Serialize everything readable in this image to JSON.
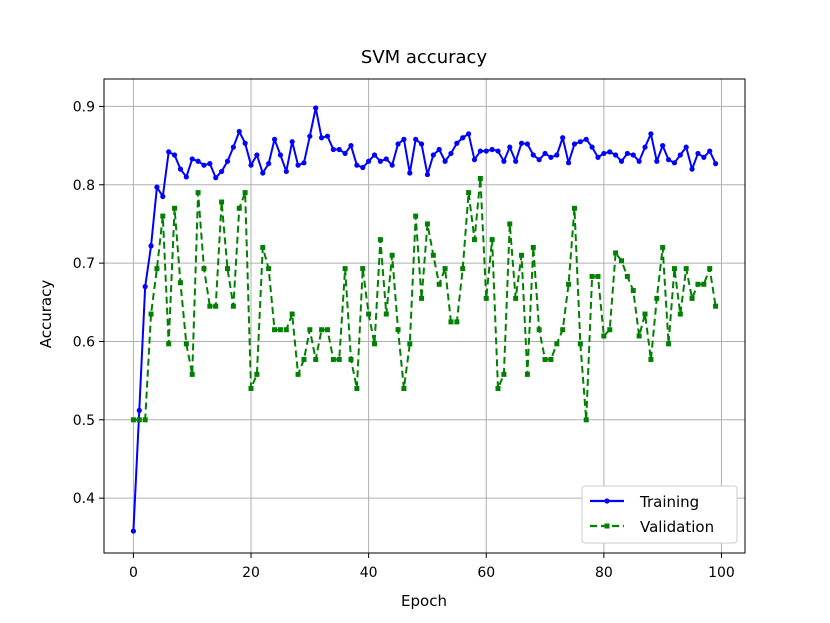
{
  "chart_data": {
    "type": "line",
    "title": "SVM accuracy",
    "xlabel": "Epoch",
    "ylabel": "Accuracy",
    "xlim": [
      -5,
      104
    ],
    "ylim": [
      0.33,
      0.935
    ],
    "xticks": [
      0,
      20,
      40,
      60,
      80,
      100
    ],
    "yticks": [
      0.4,
      0.5,
      0.6,
      0.7,
      0.8,
      0.9
    ],
    "grid": true,
    "legend_position": "lower-right",
    "series": [
      {
        "name": "Training",
        "color": "#0000ff",
        "linestyle": "solid",
        "marker": "dot",
        "x": [
          0,
          1,
          2,
          3,
          4,
          5,
          6,
          7,
          8,
          9,
          10,
          11,
          12,
          13,
          14,
          15,
          16,
          17,
          18,
          19,
          20,
          21,
          22,
          23,
          24,
          25,
          26,
          27,
          28,
          29,
          30,
          31,
          32,
          33,
          34,
          35,
          36,
          37,
          38,
          39,
          40,
          41,
          42,
          43,
          44,
          45,
          46,
          47,
          48,
          49,
          50,
          51,
          52,
          53,
          54,
          55,
          56,
          57,
          58,
          59,
          60,
          61,
          62,
          63,
          64,
          65,
          66,
          67,
          68,
          69,
          70,
          71,
          72,
          73,
          74,
          75,
          76,
          77,
          78,
          79,
          80,
          81,
          82,
          83,
          84,
          85,
          86,
          87,
          88,
          89,
          90,
          91,
          92,
          93,
          94,
          95,
          96,
          97,
          98,
          99
        ],
        "values": [
          0.358,
          0.512,
          0.67,
          0.722,
          0.797,
          0.785,
          0.842,
          0.838,
          0.82,
          0.81,
          0.833,
          0.83,
          0.825,
          0.827,
          0.809,
          0.817,
          0.83,
          0.848,
          0.868,
          0.853,
          0.825,
          0.838,
          0.815,
          0.827,
          0.858,
          0.838,
          0.817,
          0.855,
          0.825,
          0.828,
          0.862,
          0.898,
          0.86,
          0.862,
          0.845,
          0.845,
          0.84,
          0.85,
          0.825,
          0.822,
          0.83,
          0.838,
          0.83,
          0.833,
          0.825,
          0.852,
          0.858,
          0.815,
          0.858,
          0.852,
          0.813,
          0.838,
          0.845,
          0.83,
          0.84,
          0.853,
          0.86,
          0.865,
          0.832,
          0.843,
          0.843,
          0.845,
          0.843,
          0.83,
          0.848,
          0.83,
          0.853,
          0.852,
          0.838,
          0.832,
          0.84,
          0.835,
          0.838,
          0.86,
          0.828,
          0.852,
          0.855,
          0.858,
          0.848,
          0.835,
          0.84,
          0.842,
          0.838,
          0.83,
          0.84,
          0.838,
          0.83,
          0.848,
          0.865,
          0.83,
          0.85,
          0.832,
          0.828,
          0.838,
          0.848,
          0.82,
          0.84,
          0.835,
          0.843,
          0.827
        ]
      },
      {
        "name": "Validation",
        "color": "#008000",
        "linestyle": "dashed",
        "marker": "square",
        "x": [
          0,
          1,
          2,
          3,
          4,
          5,
          6,
          7,
          8,
          9,
          10,
          11,
          12,
          13,
          14,
          15,
          16,
          17,
          18,
          19,
          20,
          21,
          22,
          23,
          24,
          25,
          26,
          27,
          28,
          29,
          30,
          31,
          32,
          33,
          34,
          35,
          36,
          37,
          38,
          39,
          40,
          41,
          42,
          43,
          44,
          45,
          46,
          47,
          48,
          49,
          50,
          51,
          52,
          53,
          54,
          55,
          56,
          57,
          58,
          59,
          60,
          61,
          62,
          63,
          64,
          65,
          66,
          67,
          68,
          69,
          70,
          71,
          72,
          73,
          74,
          75,
          76,
          77,
          78,
          79,
          80,
          81,
          82,
          83,
          84,
          85,
          86,
          87,
          88,
          89,
          90,
          91,
          92,
          93,
          94,
          95,
          96,
          97,
          98,
          99
        ],
        "values": [
          0.5,
          0.5,
          0.5,
          0.635,
          0.693,
          0.76,
          0.597,
          0.77,
          0.675,
          0.597,
          0.558,
          0.79,
          0.693,
          0.645,
          0.645,
          0.778,
          0.693,
          0.645,
          0.77,
          0.79,
          0.54,
          0.558,
          0.72,
          0.693,
          0.615,
          0.615,
          0.615,
          0.635,
          0.558,
          0.577,
          0.615,
          0.577,
          0.615,
          0.615,
          0.577,
          0.577,
          0.693,
          0.577,
          0.54,
          0.693,
          0.635,
          0.597,
          0.73,
          0.635,
          0.71,
          0.615,
          0.54,
          0.597,
          0.76,
          0.655,
          0.75,
          0.71,
          0.673,
          0.693,
          0.625,
          0.625,
          0.693,
          0.79,
          0.73,
          0.808,
          0.655,
          0.73,
          0.54,
          0.558,
          0.75,
          0.655,
          0.71,
          0.558,
          0.72,
          0.615,
          0.577,
          0.577,
          0.597,
          0.615,
          0.673,
          0.77,
          0.597,
          0.5,
          0.683,
          0.683,
          0.607,
          0.615,
          0.713,
          0.703,
          0.683,
          0.665,
          0.607,
          0.635,
          0.577,
          0.655,
          0.72,
          0.597,
          0.693,
          0.635,
          0.693,
          0.655,
          0.673,
          0.673,
          0.693,
          0.645
        ]
      }
    ]
  }
}
